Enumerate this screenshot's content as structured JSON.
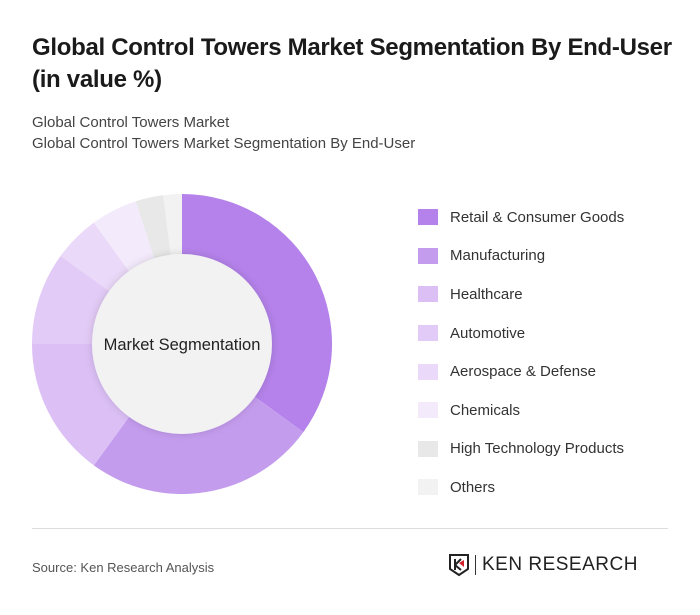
{
  "title": "Global Control Towers Market Segmentation By End-User (in value %)",
  "subtitle1": "Global Control Towers Market",
  "subtitle2": "Global Control Towers Market Segmentation By End-User",
  "source": "Source: Ken Research Analysis",
  "logo_text": "KEN RESEARCH",
  "chart_data": {
    "type": "pie",
    "variant": "donut",
    "center_label": "Market Segmentation",
    "legend_position": "right",
    "categories": [
      "Retail & Consumer Goods",
      "Manufacturing",
      "Healthcare",
      "Automotive",
      "Aerospace & Defense",
      "Chemicals",
      "High Technology Products",
      "Others"
    ],
    "values": [
      35,
      25,
      15,
      10,
      5,
      5,
      3,
      2
    ],
    "colors": [
      "#b482ea",
      "#c49cee",
      "#dbbff5",
      "#e2cbf6",
      "#ead9f8",
      "#f3eafb",
      "#e8e8e8",
      "#f2f2f2"
    ]
  }
}
